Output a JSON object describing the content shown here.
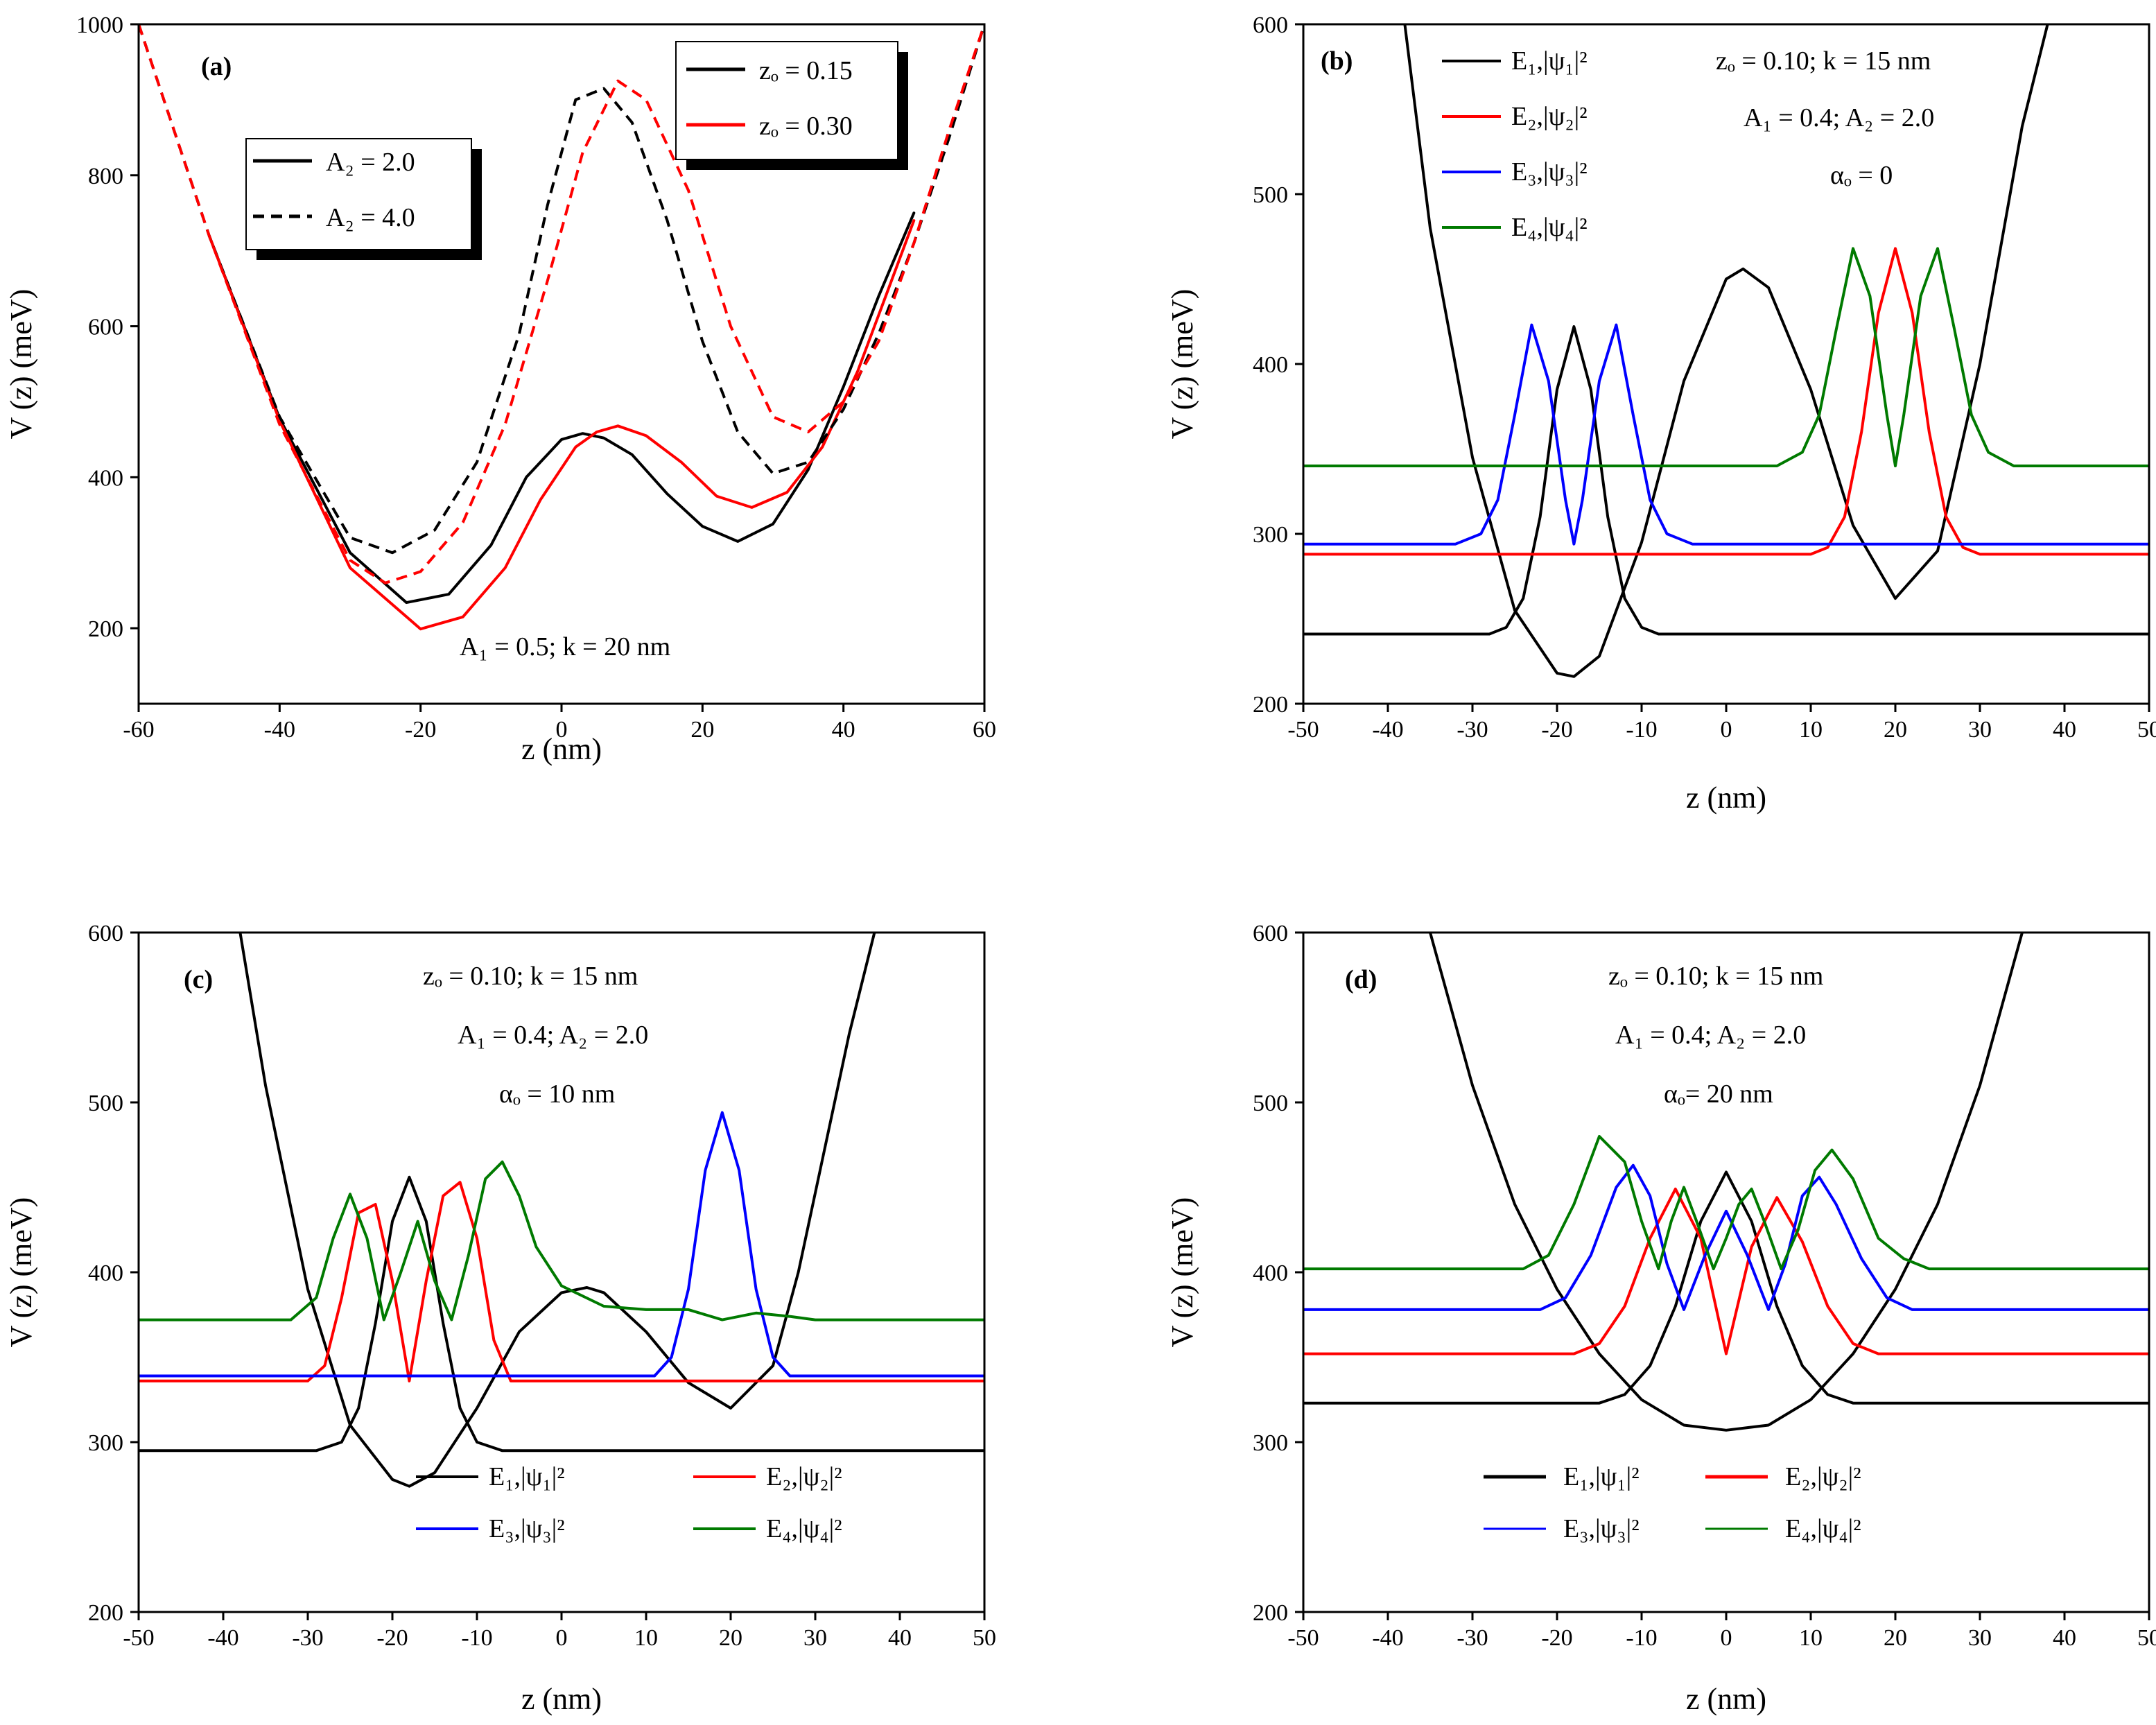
{
  "colors": {
    "black": "#000000",
    "red": "#ff0000",
    "blue": "#0000ff",
    "green": "#007a00"
  },
  "chart_data": [
    {
      "id": "a",
      "type": "line",
      "panel_label": "(a)",
      "xlabel": "z (nm)",
      "ylabel": "V (z) (meV)",
      "xlim": [
        -60,
        60
      ],
      "ylim": [
        100,
        1000
      ],
      "xticks": [
        -60,
        -40,
        -20,
        0,
        20,
        40,
        60
      ],
      "yticks": [
        200,
        400,
        600,
        800,
        1000
      ],
      "annotations": [
        "A₁ = 0.5; k = 20 nm"
      ],
      "legends": [
        {
          "entries": [
            {
              "label": "zₒ = 0.15",
              "color": "#000000",
              "dash": "solid"
            },
            {
              "label": "zₒ = 0.30",
              "color": "#ff0000",
              "dash": "solid"
            }
          ]
        },
        {
          "entries": [
            {
              "label": "A₂ = 2.0",
              "color": "#000000",
              "dash": "solid"
            },
            {
              "label": "A₂ = 4.0",
              "color": "#000000",
              "dash": "dashed"
            }
          ]
        }
      ],
      "series": [
        {
          "name": "zₒ = 0.15, A₂ = 2.0",
          "color": "#000000",
          "dash": "solid",
          "x": [
            -50,
            -40,
            -30,
            -22,
            -16,
            -10,
            -5,
            0,
            3,
            6,
            10,
            15,
            20,
            25,
            30,
            35,
            40,
            45,
            50
          ],
          "y": [
            720,
            478,
            300,
            234,
            245,
            310,
            400,
            450,
            458,
            452,
            430,
            378,
            335,
            315,
            338,
            410,
            520,
            640,
            750
          ]
        },
        {
          "name": "zₒ = 0.30, A₂ = 2.0",
          "color": "#ff0000",
          "dash": "solid",
          "x": [
            -50,
            -40,
            -30,
            -20,
            -14,
            -8,
            -3,
            2,
            5,
            8,
            12,
            17,
            22,
            27,
            32,
            37,
            42,
            46,
            50
          ],
          "y": [
            720,
            475,
            280,
            199,
            215,
            280,
            370,
            440,
            460,
            468,
            455,
            420,
            375,
            360,
            380,
            440,
            540,
            640,
            740
          ]
        },
        {
          "name": "zₒ = 0.15, A₂ = 4.0",
          "color": "#000000",
          "dash": "dashed",
          "x": [
            -60,
            -50,
            -40,
            -30,
            -24,
            -18,
            -12,
            -6,
            -2,
            2,
            6,
            10,
            15,
            20,
            25,
            30,
            35,
            40,
            45,
            50,
            55,
            60
          ],
          "y": [
            1000,
            720,
            480,
            320,
            300,
            330,
            420,
            590,
            760,
            900,
            915,
            870,
            740,
            580,
            460,
            405,
            420,
            490,
            590,
            710,
            850,
            1000
          ]
        },
        {
          "name": "zₒ = 0.30, A₂ = 4.0",
          "color": "#ff0000",
          "dash": "dashed",
          "x": [
            -60,
            -50,
            -40,
            -30,
            -25,
            -20,
            -14,
            -8,
            -2,
            3,
            8,
            12,
            18,
            24,
            30,
            35,
            40,
            45,
            50,
            55,
            60
          ],
          "y": [
            1000,
            720,
            470,
            290,
            260,
            275,
            340,
            470,
            660,
            830,
            925,
            900,
            780,
            600,
            480,
            460,
            500,
            580,
            710,
            860,
            1000
          ]
        }
      ]
    },
    {
      "id": "b",
      "type": "line",
      "panel_label": "(b)",
      "xlabel": "z (nm)",
      "ylabel": "V (z) (meV)",
      "xlim": [
        -50,
        50
      ],
      "ylim": [
        200,
        600
      ],
      "xticks": [
        -50,
        -40,
        -30,
        -20,
        -10,
        0,
        10,
        20,
        30,
        40,
        50
      ],
      "yticks": [
        200,
        300,
        400,
        500,
        600
      ],
      "annotations": [
        "zₒ = 0.10; k = 15 nm",
        "A₁ = 0.4; A₂ = 2.0",
        "αₒ = 0"
      ],
      "legends": [
        {
          "entries": [
            {
              "label": "E₁,|ψ₁|²",
              "color": "#000000",
              "dash": "solid"
            },
            {
              "label": "E₂,|ψ₂|²",
              "color": "#ff0000",
              "dash": "solid"
            },
            {
              "label": "E₃,|ψ₃|²",
              "color": "#0000ff",
              "dash": "solid"
            },
            {
              "label": "E₄,|ψ₄|²",
              "color": "#007a00",
              "dash": "solid"
            }
          ]
        }
      ],
      "series": [
        {
          "name": "V(z)",
          "color": "#000000",
          "dash": "solid",
          "x": [
            -38,
            -35,
            -30,
            -25,
            -20,
            -18,
            -15,
            -10,
            -5,
            0,
            2,
            5,
            10,
            15,
            20,
            25,
            30,
            35,
            38
          ],
          "y": [
            600,
            480,
            345,
            255,
            218,
            216,
            228,
            295,
            390,
            450,
            456,
            445,
            385,
            305,
            262,
            290,
            400,
            540,
            600
          ]
        },
        {
          "name": "E₁,|ψ₁|²",
          "color": "#000000",
          "dash": "solid",
          "x": [
            -50,
            -28,
            -26,
            -24,
            -22,
            -20,
            -18,
            -16,
            -14,
            -12,
            -10,
            -8,
            50
          ],
          "y": [
            241,
            241,
            245,
            262,
            310,
            385,
            422,
            385,
            310,
            262,
            245,
            241,
            241
          ]
        },
        {
          "name": "E₂,|ψ₂|²",
          "color": "#ff0000",
          "dash": "solid",
          "x": [
            -50,
            10,
            12,
            14,
            16,
            18,
            20,
            22,
            24,
            26,
            28,
            30,
            50
          ],
          "y": [
            288,
            288,
            292,
            310,
            360,
            430,
            468,
            430,
            360,
            310,
            292,
            288,
            288
          ]
        },
        {
          "name": "E₃,|ψ₃|²",
          "color": "#0000ff",
          "dash": "solid",
          "x": [
            -50,
            -32,
            -29,
            -27,
            -25,
            -23,
            -21,
            -19,
            -18,
            -17,
            -15,
            -13,
            -11,
            -9,
            -7,
            -4,
            50
          ],
          "y": [
            294,
            294,
            300,
            320,
            370,
            423,
            390,
            320,
            294,
            320,
            390,
            423,
            370,
            320,
            300,
            294,
            294
          ]
        },
        {
          "name": "E₄,|ψ₄|²",
          "color": "#007a00",
          "dash": "solid",
          "x": [
            -50,
            6,
            9,
            11,
            13,
            15,
            17,
            19,
            20,
            21,
            23,
            25,
            27,
            29,
            31,
            34,
            50
          ],
          "y": [
            340,
            340,
            348,
            370,
            420,
            468,
            440,
            370,
            340,
            370,
            440,
            468,
            420,
            370,
            348,
            340,
            340
          ]
        }
      ]
    },
    {
      "id": "c",
      "type": "line",
      "panel_label": "(c)",
      "xlabel": "z (nm)",
      "ylabel": "V (z) (meV)",
      "xlim": [
        -50,
        50
      ],
      "ylim": [
        200,
        600
      ],
      "xticks": [
        -50,
        -40,
        -30,
        -20,
        -10,
        0,
        10,
        20,
        30,
        40,
        50
      ],
      "yticks": [
        200,
        300,
        400,
        500,
        600
      ],
      "annotations": [
        "zₒ = 0.10; k = 15 nm",
        "A₁ = 0.4; A₂ = 2.0",
        "αₒ = 10 nm"
      ],
      "legends": [
        {
          "entries": [
            {
              "label": "E₁,|ψ₁|²",
              "color": "#000000",
              "dash": "solid"
            },
            {
              "label": "E₂,|ψ₂|²",
              "color": "#ff0000",
              "dash": "solid"
            },
            {
              "label": "E₃,|ψ₃|²",
              "color": "#0000ff",
              "dash": "solid"
            },
            {
              "label": "E₄,|ψ₄|²",
              "color": "#007a00",
              "dash": "solid"
            }
          ]
        }
      ],
      "series": [
        {
          "name": "V(z)",
          "color": "#000000",
          "dash": "solid",
          "x": [
            -38,
            -35,
            -30,
            -25,
            -20,
            -18,
            -15,
            -10,
            -5,
            0,
            3,
            5,
            10,
            15,
            20,
            25,
            28,
            31,
            34,
            37
          ],
          "y": [
            600,
            510,
            390,
            310,
            278,
            274,
            282,
            320,
            365,
            388,
            391,
            388,
            365,
            335,
            320,
            345,
            400,
            470,
            540,
            600
          ]
        },
        {
          "name": "E₁,|ψ₁|²",
          "color": "#000000",
          "dash": "solid",
          "x": [
            -50,
            -29,
            -26,
            -24,
            -22,
            -20,
            -18,
            -16,
            -14,
            -12,
            -10,
            -7,
            50
          ],
          "y": [
            295,
            295,
            300,
            320,
            370,
            430,
            456,
            430,
            370,
            320,
            300,
            295,
            295
          ]
        },
        {
          "name": "E₂,|ψ₂|²",
          "color": "#ff0000",
          "dash": "solid",
          "x": [
            -50,
            -30,
            -28,
            -26,
            -24,
            -22,
            -20,
            -18,
            -16,
            -14,
            -12,
            -10,
            -8,
            -6,
            50
          ],
          "y": [
            336,
            336,
            345,
            385,
            435,
            440,
            395,
            336,
            395,
            445,
            453,
            420,
            360,
            336,
            336
          ]
        },
        {
          "name": "E₃,|ψ₃|²",
          "color": "#0000ff",
          "dash": "solid",
          "x": [
            -50,
            11,
            13,
            15,
            17,
            19,
            21,
            23,
            25,
            27,
            50
          ],
          "y": [
            339,
            339,
            350,
            390,
            460,
            494,
            460,
            390,
            350,
            339,
            339
          ]
        },
        {
          "name": "E₄,|ψ₄|²",
          "color": "#007a00",
          "dash": "solid",
          "x": [
            -50,
            -32,
            -29,
            -27,
            -25,
            -23,
            -21,
            -19,
            -17,
            -15,
            -13,
            -11,
            -9,
            -7,
            -5,
            -3,
            0,
            5,
            10,
            15,
            19,
            23,
            27,
            30,
            50
          ],
          "y": [
            372,
            372,
            385,
            420,
            446,
            420,
            372,
            400,
            430,
            395,
            372,
            410,
            455,
            465,
            445,
            415,
            392,
            380,
            378,
            378,
            372,
            376,
            374,
            372,
            372
          ]
        }
      ]
    },
    {
      "id": "d",
      "type": "line",
      "panel_label": "(d)",
      "xlabel": "z (nm)",
      "ylabel": "V (z) (meV)",
      "xlim": [
        -50,
        50
      ],
      "ylim": [
        200,
        600
      ],
      "xticks": [
        -50,
        -40,
        -30,
        -20,
        -10,
        0,
        10,
        20,
        30,
        40,
        50
      ],
      "yticks": [
        200,
        300,
        400,
        500,
        600
      ],
      "annotations": [
        "zₒ = 0.10; k = 15 nm",
        "A₁ = 0.4; A₂ = 2.0",
        "αₒ= 20 nm"
      ],
      "legends": [
        {
          "entries": [
            {
              "label": "E₁,|ψ₁|²",
              "color": "#000000",
              "dash": "solid"
            },
            {
              "label": "E₂,|ψ₂|²",
              "color": "#ff0000",
              "dash": "solid"
            },
            {
              "label": "E₃,|ψ₃|²",
              "color": "#0000ff",
              "dash": "solid"
            },
            {
              "label": "E₄,|ψ₄|²",
              "color": "#007a00",
              "dash": "solid"
            }
          ]
        }
      ],
      "series": [
        {
          "name": "V(z)",
          "color": "#000000",
          "dash": "solid",
          "x": [
            -35,
            -30,
            -25,
            -20,
            -15,
            -10,
            -5,
            0,
            5,
            10,
            15,
            20,
            25,
            30,
            35
          ],
          "y": [
            600,
            510,
            440,
            390,
            352,
            325,
            310,
            307,
            310,
            325,
            352,
            390,
            440,
            510,
            600
          ]
        },
        {
          "name": "E₁,|ψ₁|²",
          "color": "#000000",
          "dash": "solid",
          "x": [
            -50,
            -15,
            -12,
            -9,
            -6,
            -3,
            0,
            3,
            6,
            9,
            12,
            15,
            50
          ],
          "y": [
            323,
            323,
            328,
            345,
            380,
            430,
            459,
            430,
            380,
            345,
            328,
            323,
            323
          ]
        },
        {
          "name": "E₂,|ψ₂|²",
          "color": "#ff0000",
          "dash": "solid",
          "x": [
            -50,
            -18,
            -15,
            -12,
            -9,
            -6,
            -3,
            0,
            3,
            6,
            9,
            12,
            15,
            18,
            50
          ],
          "y": [
            352,
            352,
            358,
            380,
            420,
            449,
            420,
            352,
            415,
            444,
            418,
            380,
            358,
            352,
            352
          ]
        },
        {
          "name": "E₃,|ψ₃|²",
          "color": "#0000ff",
          "dash": "solid",
          "x": [
            -50,
            -22,
            -19,
            -16,
            -13,
            -11,
            -9,
            -7,
            -5,
            -2.5,
            0,
            2.5,
            5,
            7,
            9,
            11,
            13,
            16,
            19,
            22,
            50
          ],
          "y": [
            378,
            378,
            385,
            410,
            450,
            463,
            445,
            405,
            378,
            410,
            436,
            410,
            378,
            405,
            445,
            456,
            440,
            408,
            385,
            378,
            378
          ]
        },
        {
          "name": "E₄,|ψ₄|²",
          "color": "#007a00",
          "dash": "solid",
          "x": [
            -50,
            -24,
            -21,
            -18,
            -15,
            -12,
            -10,
            -8,
            -6.5,
            -5,
            -3.5,
            -1.5,
            0,
            1.5,
            3,
            4.5,
            6.5,
            8.5,
            10.5,
            12.5,
            15,
            18,
            21,
            24,
            50
          ],
          "y": [
            402,
            402,
            410,
            440,
            480,
            465,
            430,
            402,
            430,
            450,
            430,
            402,
            420,
            440,
            449,
            430,
            402,
            425,
            460,
            472,
            455,
            420,
            408,
            402,
            402
          ]
        }
      ]
    }
  ]
}
